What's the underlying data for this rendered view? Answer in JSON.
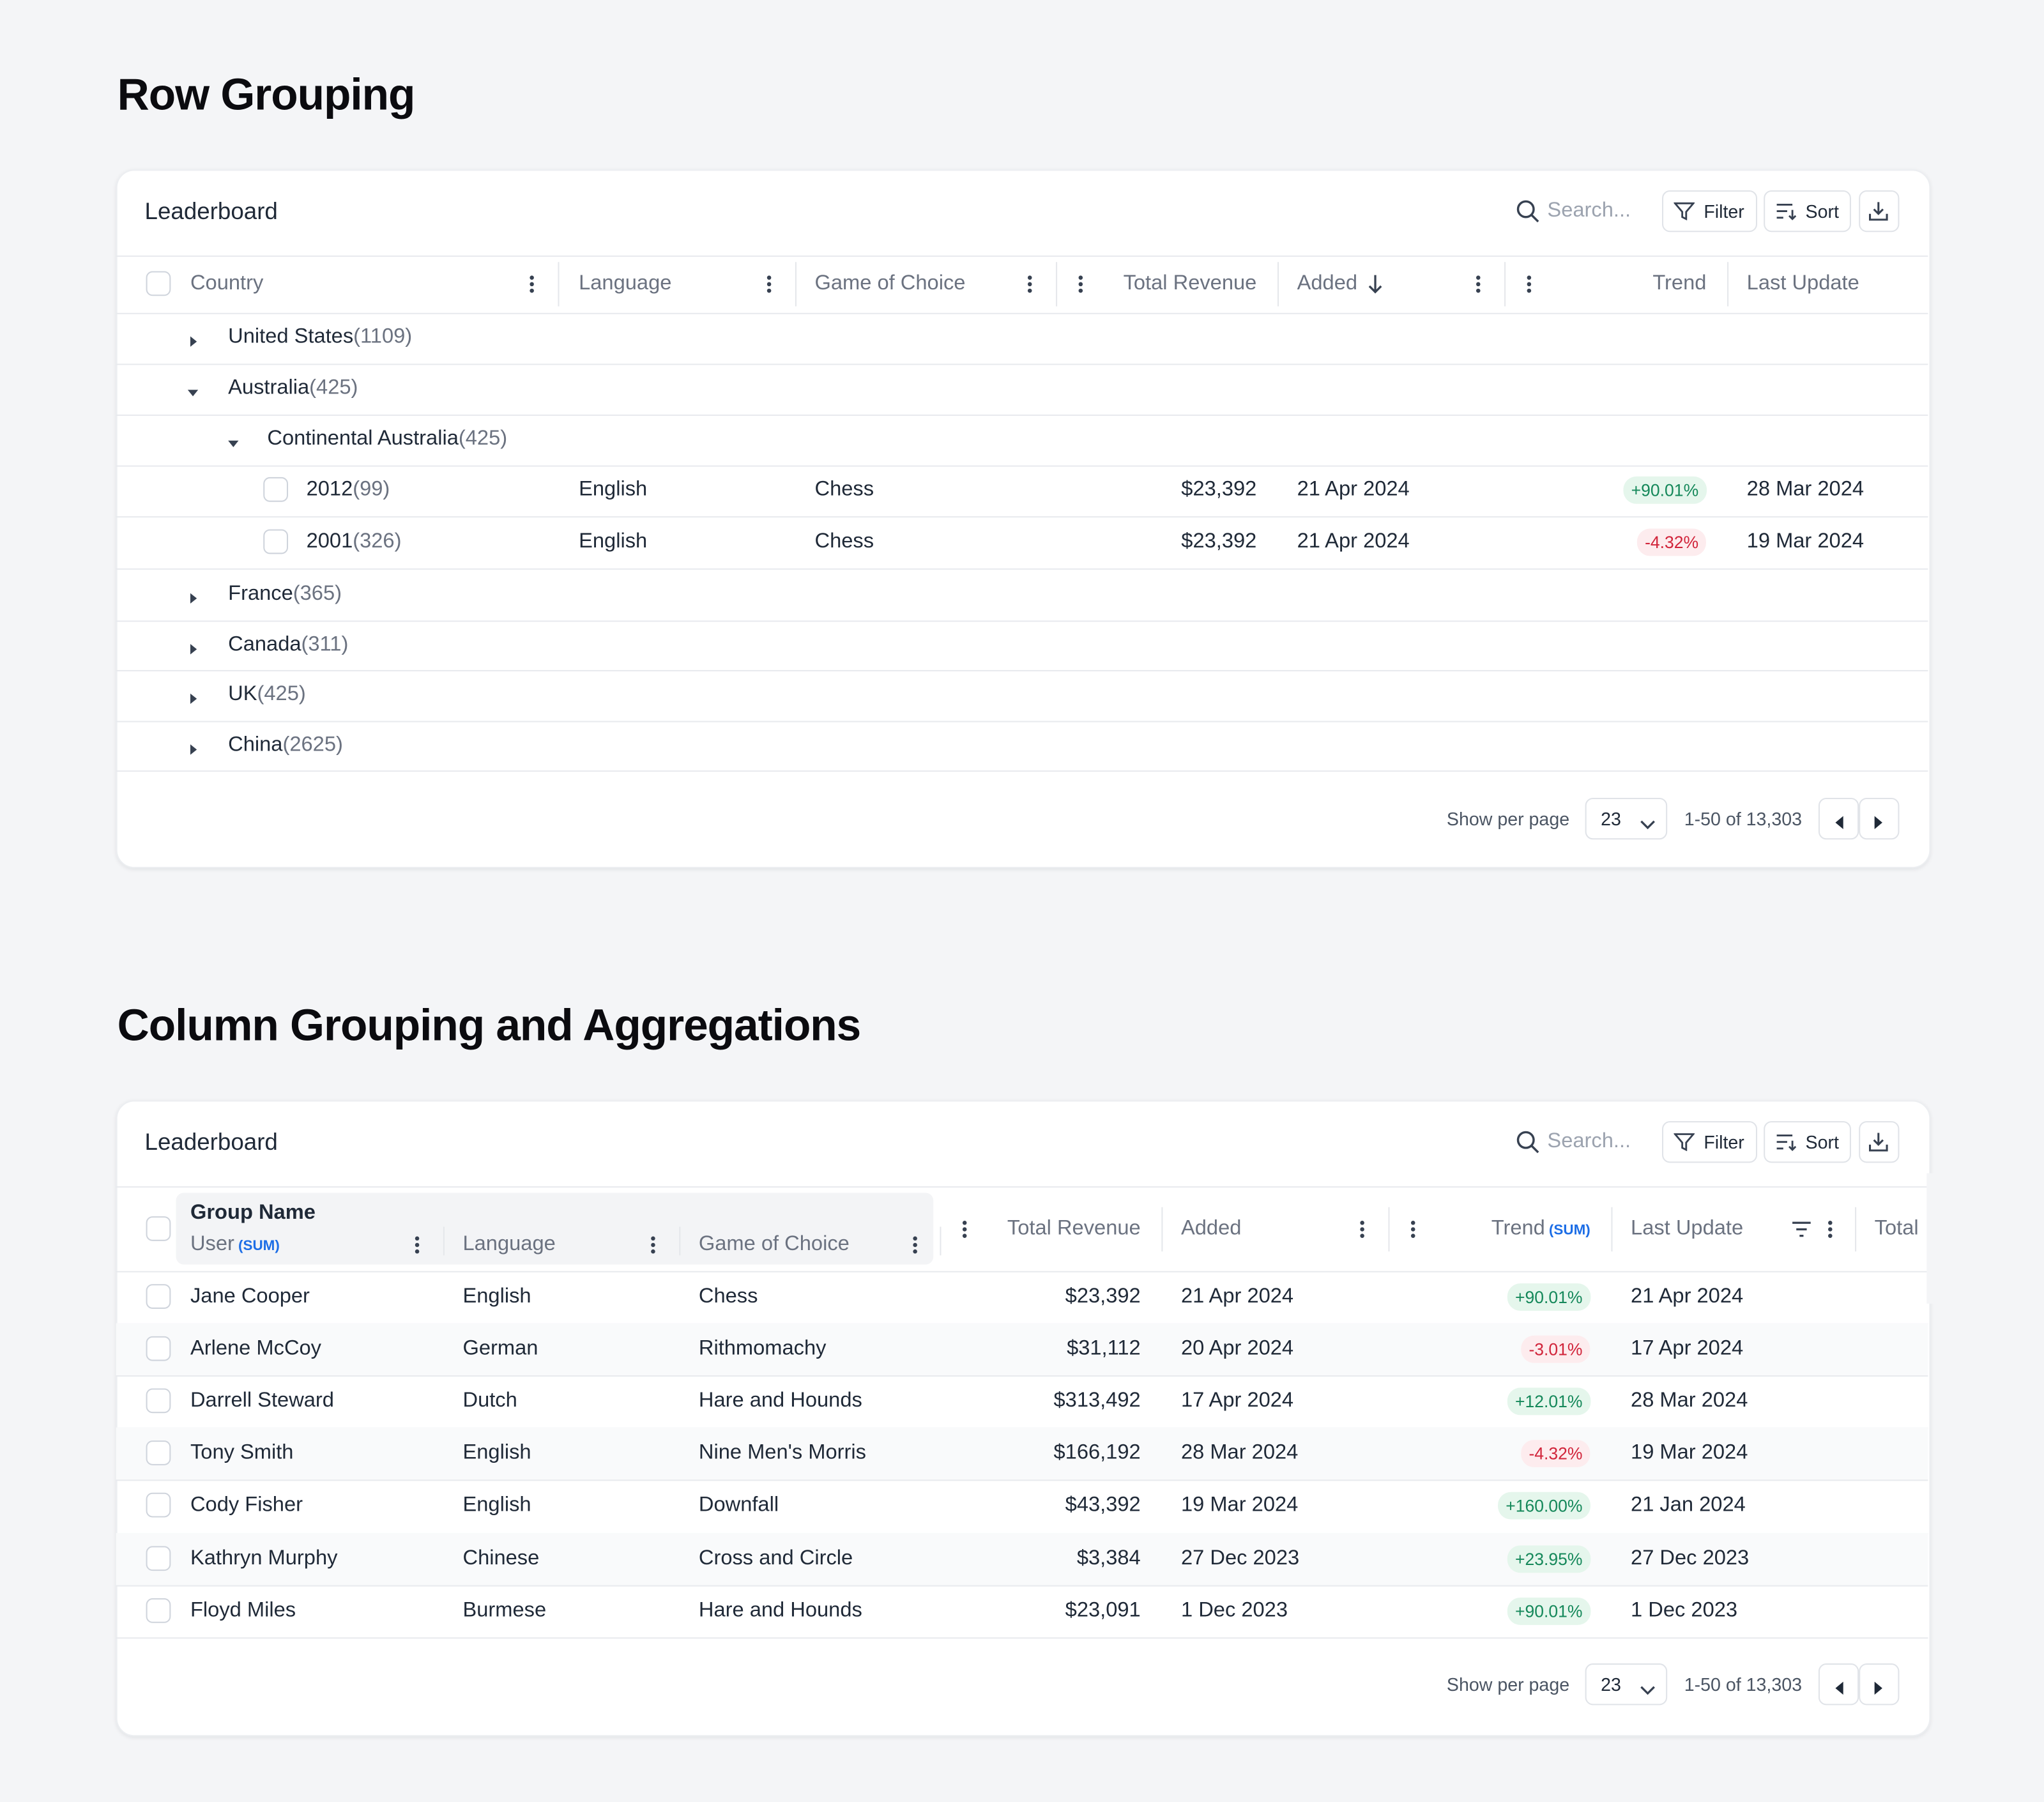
{
  "sections": [
    {
      "title": "Row Grouping",
      "toolbar": {
        "title": "Leaderboard",
        "search": "Search...",
        "filter": "Filter",
        "sort": "Sort"
      },
      "columns": [
        {
          "label": "Country"
        },
        {
          "label": "Language"
        },
        {
          "label": "Game of Choice"
        },
        {
          "label": "Total Revenue"
        },
        {
          "label": "Added"
        },
        {
          "label": "Trend"
        },
        {
          "label": "Last Update"
        }
      ],
      "rows": [
        {
          "label": "United States",
          "count": "(1109)",
          "level": 0,
          "expanded": false
        },
        {
          "label": "Australia",
          "count": "(425)",
          "level": 0,
          "expanded": true
        },
        {
          "label": "Continental Australia",
          "count": "(425)",
          "level": 1,
          "expanded": true
        },
        {
          "label": "2012",
          "count": "(99)",
          "level": 2,
          "cells": [
            "English",
            "Chess",
            "$23,392",
            "21 Apr 2024",
            "+90.01%",
            "28 Mar 2024"
          ]
        },
        {
          "label": "2001",
          "count": "(326)",
          "level": 2,
          "cells": [
            "English",
            "Chess",
            "$23,392",
            "21 Apr 2024",
            "-4.32%",
            "19 Mar 2024"
          ]
        },
        {
          "label": "France",
          "count": "(365)",
          "level": 0,
          "expanded": false
        },
        {
          "label": "Canada",
          "count": "(311)",
          "level": 0,
          "expanded": false
        },
        {
          "label": "UK",
          "count": "(425)",
          "level": 0,
          "expanded": false
        },
        {
          "label": "China",
          "count": "(2625)",
          "level": 0,
          "expanded": false
        }
      ],
      "footer": {
        "label": "Show per page",
        "per_page": "23",
        "range": "1-50 of 13,303"
      }
    },
    {
      "title": "Column Grouping and Aggregations",
      "toolbar": {
        "title": "Leaderboard",
        "search": "Search...",
        "filter": "Filter",
        "sort": "Sort"
      },
      "group_header": "Group Name",
      "columns": [
        {
          "label": "User",
          "badge": "(SUM)"
        },
        {
          "label": "Language"
        },
        {
          "label": "Game of Choice"
        },
        {
          "label": "Total Revenue"
        },
        {
          "label": "Added"
        },
        {
          "label": "Trend",
          "badge": "(SUM)"
        },
        {
          "label": "Last Update"
        },
        {
          "label": "Total"
        }
      ],
      "rows": [
        [
          "Jane Cooper",
          "English",
          "Chess",
          "$23,392",
          "21 Apr 2024",
          "+90.01%",
          "21 Apr 2024"
        ],
        [
          "Arlene McCoy",
          "German",
          "Rithmomachy",
          "$31,112",
          "20 Apr 2024",
          "-3.01%",
          "17 Apr 2024"
        ],
        [
          "Darrell Steward",
          "Dutch",
          "Hare and Hounds",
          "$313,492",
          "17 Apr 2024",
          "+12.01%",
          "28 Mar 2024"
        ],
        [
          "Tony Smith",
          "English",
          "Nine Men's Morris",
          "$166,192",
          "28 Mar 2024",
          "-4.32%",
          "19 Mar 2024"
        ],
        [
          "Cody Fisher",
          "English",
          "Downfall",
          "$43,392",
          "19 Mar 2024",
          "+160.00%",
          "21 Jan 2024"
        ],
        [
          "Kathryn Murphy",
          "Chinese",
          "Cross and Circle",
          "$3,384",
          "27 Dec 2023",
          "+23.95%",
          "27 Dec 2023"
        ],
        [
          "Floyd Miles",
          "Burmese",
          "Hare and Hounds",
          "$23,091",
          "1 Dec 2023",
          "+90.01%",
          "1 Dec 2023"
        ]
      ],
      "footer": {
        "label": "Show per page",
        "per_page": "23",
        "range": "1-50 of 13,303"
      }
    }
  ]
}
